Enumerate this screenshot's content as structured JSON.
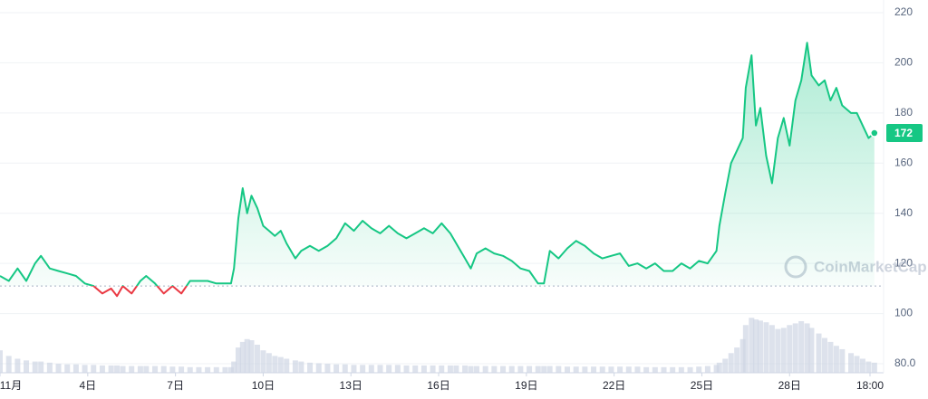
{
  "chart_data": {
    "type": "line",
    "x": [
      1.0,
      1.3,
      1.6,
      1.9,
      2.2,
      2.4,
      2.7,
      3.0,
      3.3,
      3.6,
      3.9,
      4.2,
      4.5,
      4.8,
      5.0,
      5.2,
      5.5,
      5.8,
      6.0,
      6.3,
      6.6,
      6.9,
      7.2,
      7.5,
      7.8,
      8.1,
      8.4,
      8.7,
      8.9,
      9.0,
      9.15,
      9.3,
      9.45,
      9.6,
      9.8,
      10.0,
      10.2,
      10.4,
      10.6,
      10.8,
      11.1,
      11.3,
      11.6,
      11.9,
      12.2,
      12.5,
      12.8,
      13.1,
      13.4,
      13.7,
      14.0,
      14.3,
      14.6,
      14.9,
      15.2,
      15.5,
      15.8,
      16.1,
      16.4,
      16.6,
      16.9,
      17.1,
      17.3,
      17.6,
      17.9,
      18.2,
      18.5,
      18.8,
      19.1,
      19.4,
      19.6,
      19.8,
      20.1,
      20.4,
      20.7,
      21.0,
      21.3,
      21.6,
      21.9,
      22.2,
      22.5,
      22.8,
      23.1,
      23.4,
      23.7,
      24.0,
      24.3,
      24.6,
      24.9,
      25.2,
      25.5,
      25.6,
      25.8,
      26.0,
      26.2,
      26.4,
      26.5,
      26.7,
      26.85,
      27.0,
      27.2,
      27.4,
      27.6,
      27.8,
      28.0,
      28.2,
      28.4,
      28.6,
      28.75,
      29.0,
      29.2,
      29.4,
      29.6,
      29.8,
      30.1,
      30.3,
      30.5,
      30.7,
      30.9
    ],
    "values": [
      115,
      113,
      118,
      113,
      120,
      123,
      118,
      117,
      116,
      115,
      112,
      111,
      108,
      110,
      107,
      111,
      108,
      113,
      115,
      112,
      108,
      111,
      108,
      113,
      113,
      113,
      112,
      112,
      112,
      118,
      138,
      150,
      140,
      147,
      142,
      135,
      133,
      131,
      133,
      128,
      122,
      125,
      127,
      125,
      127,
      130,
      136,
      133,
      137,
      134,
      132,
      135,
      132,
      130,
      132,
      134,
      132,
      136,
      132,
      128,
      122,
      118,
      124,
      126,
      124,
      123,
      121,
      118,
      117,
      112,
      112,
      125,
      122,
      126,
      129,
      127,
      124,
      122,
      123,
      124,
      119,
      120,
      118,
      120,
      117,
      117,
      120,
      118,
      121,
      120,
      125,
      135,
      148,
      160,
      165,
      170,
      190,
      203,
      175,
      182,
      163,
      152,
      170,
      178,
      167,
      185,
      193,
      208,
      195,
      191,
      193,
      185,
      190,
      183,
      180,
      180,
      175,
      170,
      172
    ],
    "volume": [
      40,
      30,
      25,
      22,
      20,
      20,
      18,
      16,
      15,
      15,
      14,
      14,
      13,
      13,
      13,
      12,
      12,
      12,
      12,
      12,
      12,
      11,
      11,
      10,
      10,
      10,
      10,
      10,
      10,
      20,
      45,
      55,
      60,
      58,
      50,
      40,
      35,
      30,
      28,
      25,
      22,
      20,
      18,
      17,
      16,
      15,
      15,
      14,
      14,
      14,
      14,
      14,
      14,
      13,
      13,
      13,
      13,
      13,
      13,
      13,
      13,
      12,
      12,
      12,
      12,
      12,
      12,
      12,
      12,
      12,
      12,
      12,
      12,
      11,
      11,
      11,
      11,
      11,
      11,
      11,
      11,
      11,
      10,
      10,
      10,
      10,
      10,
      10,
      11,
      12,
      14,
      18,
      25,
      35,
      45,
      60,
      85,
      98,
      95,
      93,
      90,
      85,
      78,
      80,
      85,
      88,
      92,
      88,
      80,
      70,
      62,
      55,
      48,
      42,
      35,
      30,
      25,
      20,
      18
    ],
    "volume_lim": [
      0,
      100
    ],
    "baseline": 111,
    "current_price": 172,
    "color": "#16c784",
    "down_color": "#ea3943",
    "volume_color": "#cfd6e4",
    "xlim": [
      1,
      31.06
    ],
    "xticks": [
      {
        "value": 1,
        "label": "11月"
      },
      {
        "value": 4,
        "label": "4日"
      },
      {
        "value": 7,
        "label": "7日"
      },
      {
        "value": 10,
        "label": "10日"
      },
      {
        "value": 13,
        "label": "13日"
      },
      {
        "value": 16,
        "label": "16日"
      },
      {
        "value": 19,
        "label": "19日"
      },
      {
        "value": 22,
        "label": "22日"
      },
      {
        "value": 25,
        "label": "25日"
      },
      {
        "value": 28,
        "label": "28日"
      },
      {
        "value": 30.75,
        "label": "18:00"
      }
    ],
    "ylim": [
      80,
      220
    ],
    "yticks": [
      220,
      200,
      180,
      160,
      140,
      120,
      100,
      {
        "value": 80,
        "label": "80.0"
      }
    ],
    "grid": true,
    "watermark": "CoinMarketCap"
  }
}
